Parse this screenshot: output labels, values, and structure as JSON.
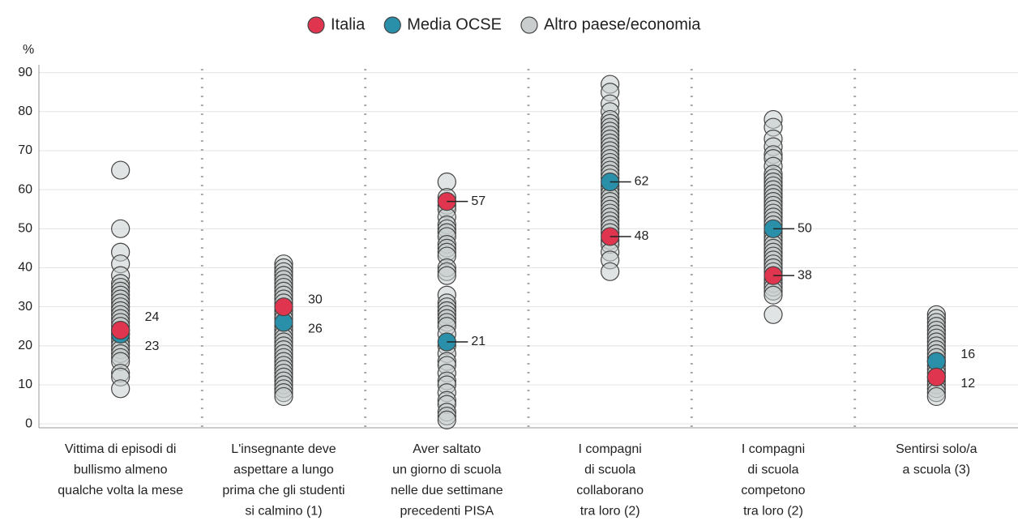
{
  "chart_data": {
    "type": "strip",
    "y_label": "%",
    "categories": [
      [
        "Vittima di episodi di",
        "bullismo almeno",
        "qualche volta la mese"
      ],
      [
        "L'insegnante deve",
        "aspettare a lungo",
        "prima che gli studenti",
        "si calmino (1)"
      ],
      [
        "Aver saltato",
        "un giorno di scuola",
        "nelle due settimane",
        "precedenti PISA"
      ],
      [
        "I compagni",
        "di scuola",
        "collaborano",
        "tra loro (2)"
      ],
      [
        "I compagni",
        "di scuola",
        "competono",
        "tra loro (2)"
      ],
      [
        "Sentirsi solo/a",
        "a scuola (3)"
      ]
    ],
    "series": [
      {
        "name": "Altro paese/economia",
        "color": "#c9cdcd",
        "values": [
          [
            65,
            50,
            44,
            41,
            38,
            36,
            35,
            34,
            33,
            32,
            31,
            30,
            29,
            28,
            27,
            26,
            25,
            24,
            23,
            22,
            21,
            20,
            19,
            18,
            17,
            16,
            13,
            12,
            9
          ],
          [
            41,
            40,
            39,
            38,
            37,
            36,
            35,
            34,
            33,
            32,
            31,
            29,
            28,
            27,
            25,
            24,
            23,
            22,
            21,
            20,
            19,
            18,
            17,
            16,
            15,
            14,
            13,
            12,
            11,
            10,
            9,
            8,
            7
          ],
          [
            62,
            58,
            56,
            55,
            53,
            51,
            50,
            49,
            48,
            46,
            45,
            44,
            43,
            40,
            39,
            38,
            33,
            31,
            30,
            29,
            28,
            27,
            26,
            25,
            23,
            20,
            18,
            16,
            15,
            13,
            11,
            10,
            8,
            6,
            5,
            3,
            2,
            1
          ],
          [
            87,
            85,
            82,
            80,
            78,
            77,
            76,
            75,
            74,
            73,
            72,
            71,
            70,
            69,
            68,
            67,
            66,
            65,
            64,
            63,
            61,
            60,
            59,
            58,
            57,
            56,
            55,
            54,
            53,
            52,
            51,
            50,
            49,
            47,
            46,
            44,
            42,
            39
          ],
          [
            78,
            76,
            73,
            71,
            69,
            68,
            66,
            64,
            63,
            62,
            61,
            60,
            59,
            58,
            57,
            56,
            55,
            54,
            53,
            52,
            51,
            49,
            48,
            47,
            46,
            45,
            44,
            43,
            42,
            41,
            40,
            39,
            37,
            36,
            35,
            34,
            33,
            28
          ],
          [
            28,
            27,
            26,
            25,
            24,
            23,
            22,
            21,
            20,
            19,
            18,
            17,
            16,
            15,
            14,
            13,
            12,
            11,
            10,
            9,
            8,
            7
          ]
        ]
      },
      {
        "name": "Media OCSE",
        "color": "#2a8fa8",
        "values": [
          23,
          26,
          21,
          62,
          50,
          16
        ]
      },
      {
        "name": "Italia",
        "color": "#e0354f",
        "values": [
          24,
          30,
          57,
          48,
          38,
          12
        ]
      }
    ],
    "ylim": [
      -1,
      92
    ],
    "yticks": [
      0,
      10,
      20,
      30,
      40,
      50,
      60,
      70,
      80,
      90
    ],
    "grid": true,
    "legend": "top"
  }
}
